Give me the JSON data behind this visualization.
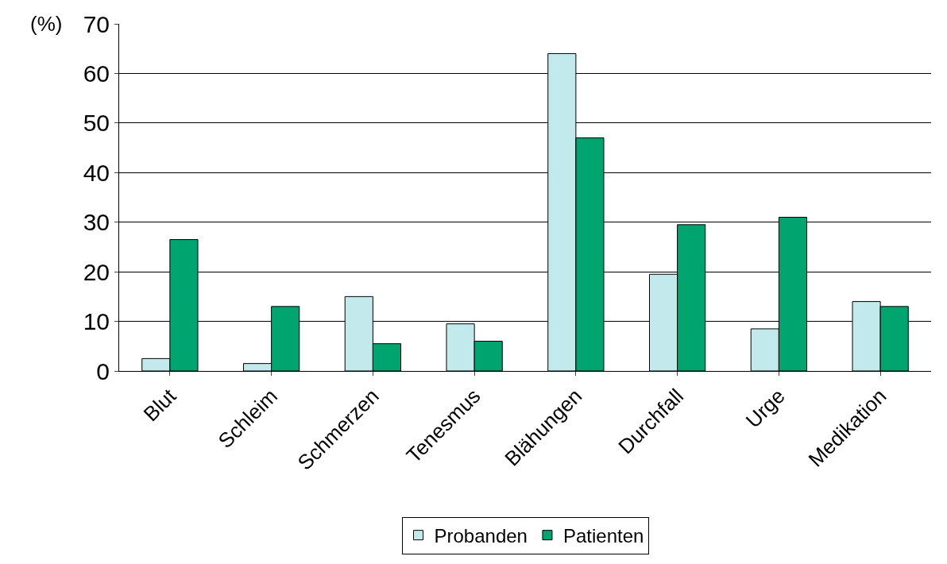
{
  "chart_data": {
    "type": "bar",
    "ylabel": "(%)",
    "categories": [
      "Blut",
      "Schleim",
      "Schmerzen",
      "Tenesmus",
      "Blähungen",
      "Durchfall",
      "Urge",
      "Medikation"
    ],
    "series": [
      {
        "name": "Probanden",
        "color": "#c2e9ec",
        "values": [
          2.5,
          1.5,
          15,
          9.5,
          64,
          19.5,
          8.5,
          14
        ]
      },
      {
        "name": "Patienten",
        "color": "#00a46e",
        "values": [
          26.5,
          13,
          5.5,
          6,
          47,
          29.5,
          31,
          13
        ]
      }
    ],
    "ylim": [
      0,
      70
    ],
    "yticks": [
      0,
      10,
      20,
      30,
      40,
      50,
      60,
      70
    ],
    "grid": "y",
    "legend": "bottom"
  }
}
